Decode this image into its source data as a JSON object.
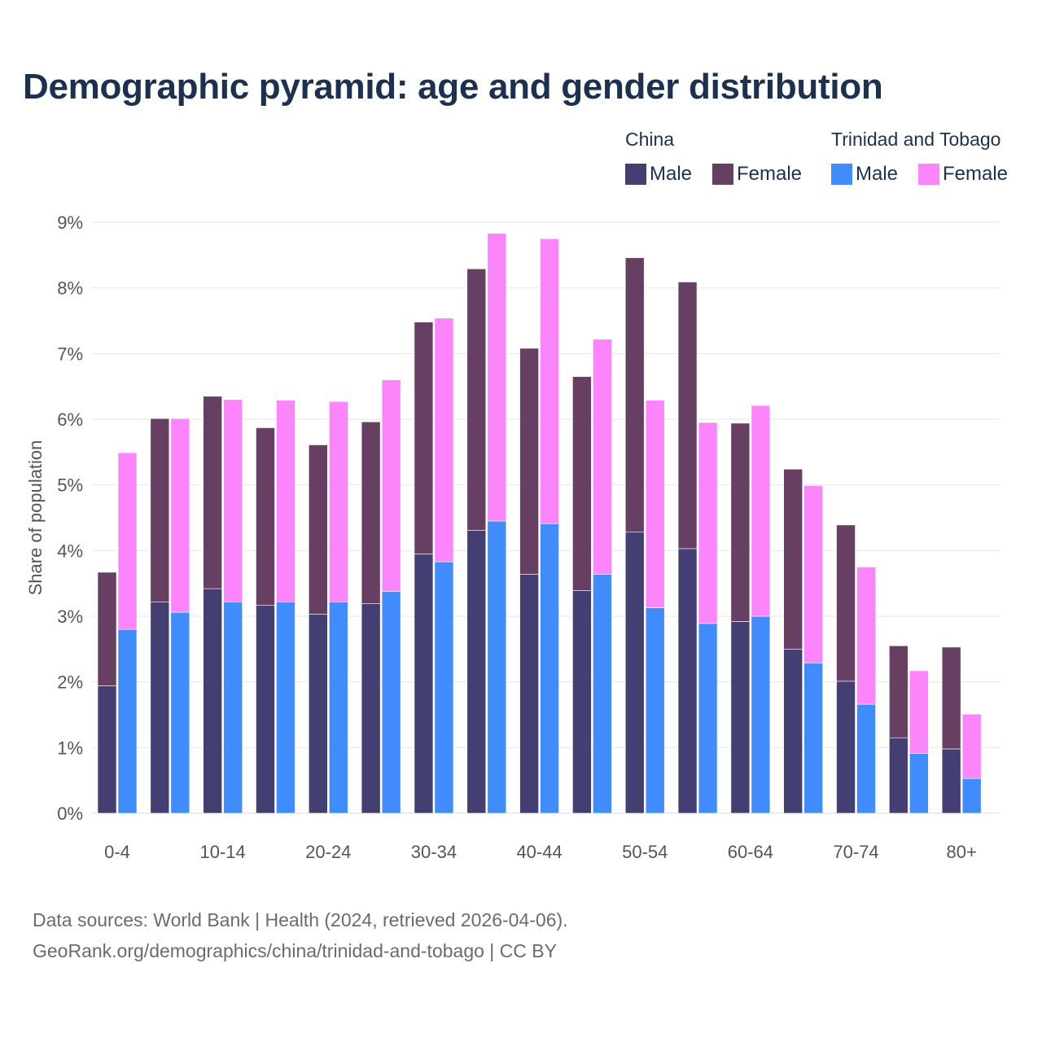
{
  "title": "Demographic pyramid: age and gender distribution",
  "legend": {
    "groups": [
      {
        "name": "China",
        "items": [
          {
            "label": "Male",
            "color": "#433f72"
          },
          {
            "label": "Female",
            "color": "#673f62"
          }
        ]
      },
      {
        "name": "Trinidad and Tobago",
        "items": [
          {
            "label": "Male",
            "color": "#418cfc"
          },
          {
            "label": "Female",
            "color": "#fc85fc"
          }
        ]
      }
    ]
  },
  "source": {
    "line1": "Data sources: World Bank | Health (2024, retrieved 2026-04-06).",
    "line2": "GeoRank.org/demographics/china/trinidad-and-tobago | CC BY"
  },
  "chart_data": {
    "type": "bar",
    "stacked": true,
    "grouped": true,
    "ylabel": "Share of population",
    "xlabel": "",
    "ylim": [
      0,
      9
    ],
    "yticks": [
      "0%",
      "1%",
      "2%",
      "3%",
      "4%",
      "5%",
      "6%",
      "7%",
      "8%",
      "9%"
    ],
    "categories": [
      "0-4",
      "5-9",
      "10-14",
      "15-19",
      "20-24",
      "25-29",
      "30-34",
      "35-39",
      "40-44",
      "45-49",
      "50-54",
      "55-59",
      "60-64",
      "65-69",
      "70-74",
      "75-79",
      "80+"
    ],
    "shown_tick_labels": [
      "0-4",
      "10-14",
      "20-24",
      "30-34",
      "40-44",
      "50-54",
      "60-64",
      "70-74",
      "80+"
    ],
    "series": [
      {
        "name": "Male",
        "group": "China",
        "color": "#433f72",
        "values": [
          1.94,
          3.22,
          3.42,
          3.17,
          3.03,
          3.19,
          3.95,
          4.31,
          3.64,
          3.39,
          4.28,
          4.03,
          2.92,
          2.5,
          2.01,
          1.15,
          0.98
        ]
      },
      {
        "name": "Female",
        "group": "China",
        "color": "#673f62",
        "values": [
          1.73,
          2.79,
          2.93,
          2.7,
          2.58,
          2.77,
          3.53,
          3.98,
          3.44,
          3.26,
          4.18,
          4.06,
          3.02,
          2.74,
          2.38,
          1.4,
          1.55
        ]
      },
      {
        "name": "Male",
        "group": "Trinidad and Tobago",
        "color": "#418cfc",
        "values": [
          2.8,
          3.06,
          3.22,
          3.22,
          3.22,
          3.38,
          3.83,
          4.45,
          4.41,
          3.64,
          3.13,
          2.89,
          3.0,
          2.29,
          1.66,
          0.91,
          0.53
        ]
      },
      {
        "name": "Female",
        "group": "Trinidad and Tobago",
        "color": "#fc85fc",
        "values": [
          2.69,
          2.95,
          3.08,
          3.07,
          3.05,
          3.22,
          3.71,
          4.38,
          4.34,
          3.58,
          3.16,
          3.06,
          3.21,
          2.7,
          2.09,
          1.26,
          0.98
        ]
      }
    ]
  }
}
